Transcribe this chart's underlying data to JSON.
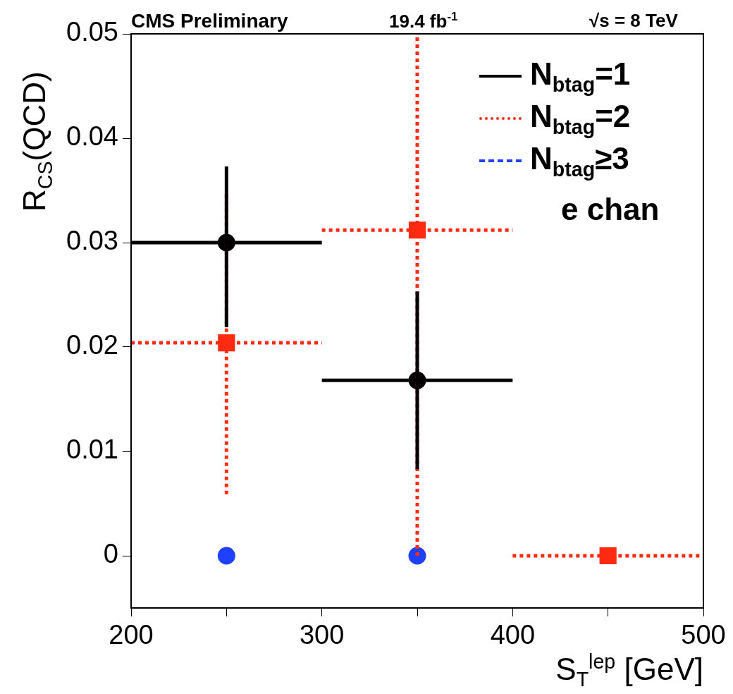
{
  "chart_data": {
    "type": "scatter",
    "xlabel": "S$_{T}$$^{lep}$ [GeV]",
    "ylabel": "R$_{CS}$(QCD)",
    "annotations": [
      "CMS Preliminary",
      "19.4 fb$^{-1}$",
      "√s = 8 TeV",
      "e chan"
    ],
    "x": [
      250,
      350,
      450
    ],
    "xlim": [
      200,
      500
    ],
    "xticks": [
      200,
      {
        "value": 250,
        "label": null
      },
      300,
      {
        "value": 350,
        "label": null
      },
      400,
      {
        "value": 450,
        "label": null
      },
      500
    ],
    "ylim": [
      -0.005,
      0.05
    ],
    "yticks": [
      0,
      0.01,
      0.02,
      0.03,
      0.04,
      0.05
    ],
    "grid": false,
    "legend": "top right",
    "series": [
      {
        "name": "N$_{btag}$=1",
        "color": "#000000",
        "marker": "circle",
        "line_style": "solid",
        "values": [
          0.03,
          0.0168,
          null
        ],
        "errors": [
          [
            0.0219,
            0.0373
          ],
          [
            0.0083,
            0.0253
          ],
          null
        ],
        "xerrors": [
          50,
          50,
          null
        ]
      },
      {
        "name": "N$_{btag}$=2",
        "color": "#ff2a12",
        "marker": "square",
        "line_style": "dotted",
        "values": [
          0.0204,
          0.0312,
          0
        ],
        "errors": [
          [
            0.0059,
            0.0348
          ],
          [
            0,
            0.05
          ],
          null
        ],
        "xerrors": [
          50,
          50,
          50
        ]
      },
      {
        "name": "N$_{btag}$≥3",
        "color": "#2040ff",
        "marker": "circle",
        "line_style": "dashed",
        "values": [
          0,
          0,
          null
        ]
      }
    ]
  }
}
